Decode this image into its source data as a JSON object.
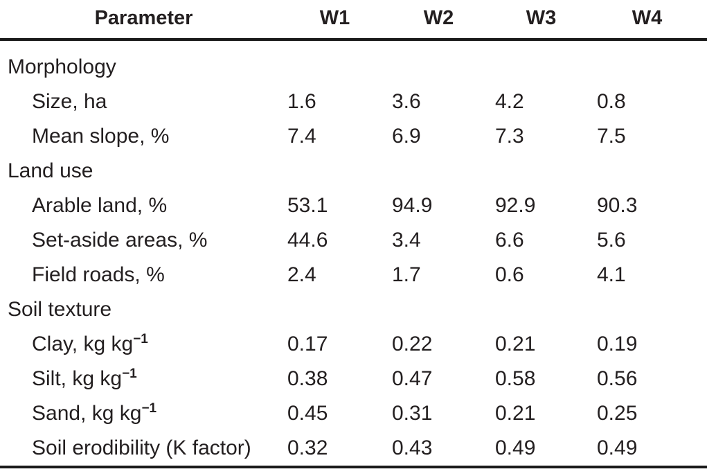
{
  "table": {
    "description": "Watershed parameters table",
    "colors": {
      "background": "#ffffff",
      "text": "#231f20",
      "rule": "#1a1a1a"
    },
    "columns": [
      "Parameter",
      "W1",
      "W2",
      "W3",
      "W4"
    ],
    "rows": [
      {
        "type": "section",
        "label": "Morphology",
        "sup": "",
        "values": [
          "",
          "",
          "",
          ""
        ]
      },
      {
        "type": "param",
        "label": "Size, ha",
        "sup": "",
        "values": [
          "1.6",
          "3.6",
          "4.2",
          "0.8"
        ]
      },
      {
        "type": "param",
        "label": "Mean slope, %",
        "sup": "",
        "values": [
          "7.4",
          "6.9",
          "7.3",
          "7.5"
        ]
      },
      {
        "type": "section",
        "label": "Land use",
        "sup": "",
        "values": [
          "",
          "",
          "",
          ""
        ]
      },
      {
        "type": "param",
        "label": "Arable land, %",
        "sup": "",
        "values": [
          "53.1",
          "94.9",
          "92.9",
          "90.3"
        ]
      },
      {
        "type": "param",
        "label": "Set-aside areas, %",
        "sup": "",
        "values": [
          "44.6",
          "3.4",
          "6.6",
          "5.6"
        ]
      },
      {
        "type": "param",
        "label": "Field roads, %",
        "sup": "",
        "values": [
          "2.4",
          "1.7",
          "0.6",
          "4.1"
        ]
      },
      {
        "type": "section",
        "label": "Soil texture",
        "sup": "",
        "values": [
          "",
          "",
          "",
          ""
        ]
      },
      {
        "type": "param",
        "label": "Clay, kg kg",
        "sup": "−1",
        "values": [
          "0.17",
          "0.22",
          "0.21",
          "0.19"
        ]
      },
      {
        "type": "param",
        "label": "Silt, kg kg",
        "sup": "−1",
        "values": [
          "0.38",
          "0.47",
          "0.58",
          "0.56"
        ]
      },
      {
        "type": "param",
        "label": "Sand, kg kg",
        "sup": "−1",
        "values": [
          "0.45",
          "0.31",
          "0.21",
          "0.25"
        ]
      },
      {
        "type": "param",
        "label": "Soil erodibility (K factor)",
        "sup": "",
        "values": [
          "0.32",
          "0.43",
          "0.49",
          "0.49"
        ]
      }
    ]
  }
}
